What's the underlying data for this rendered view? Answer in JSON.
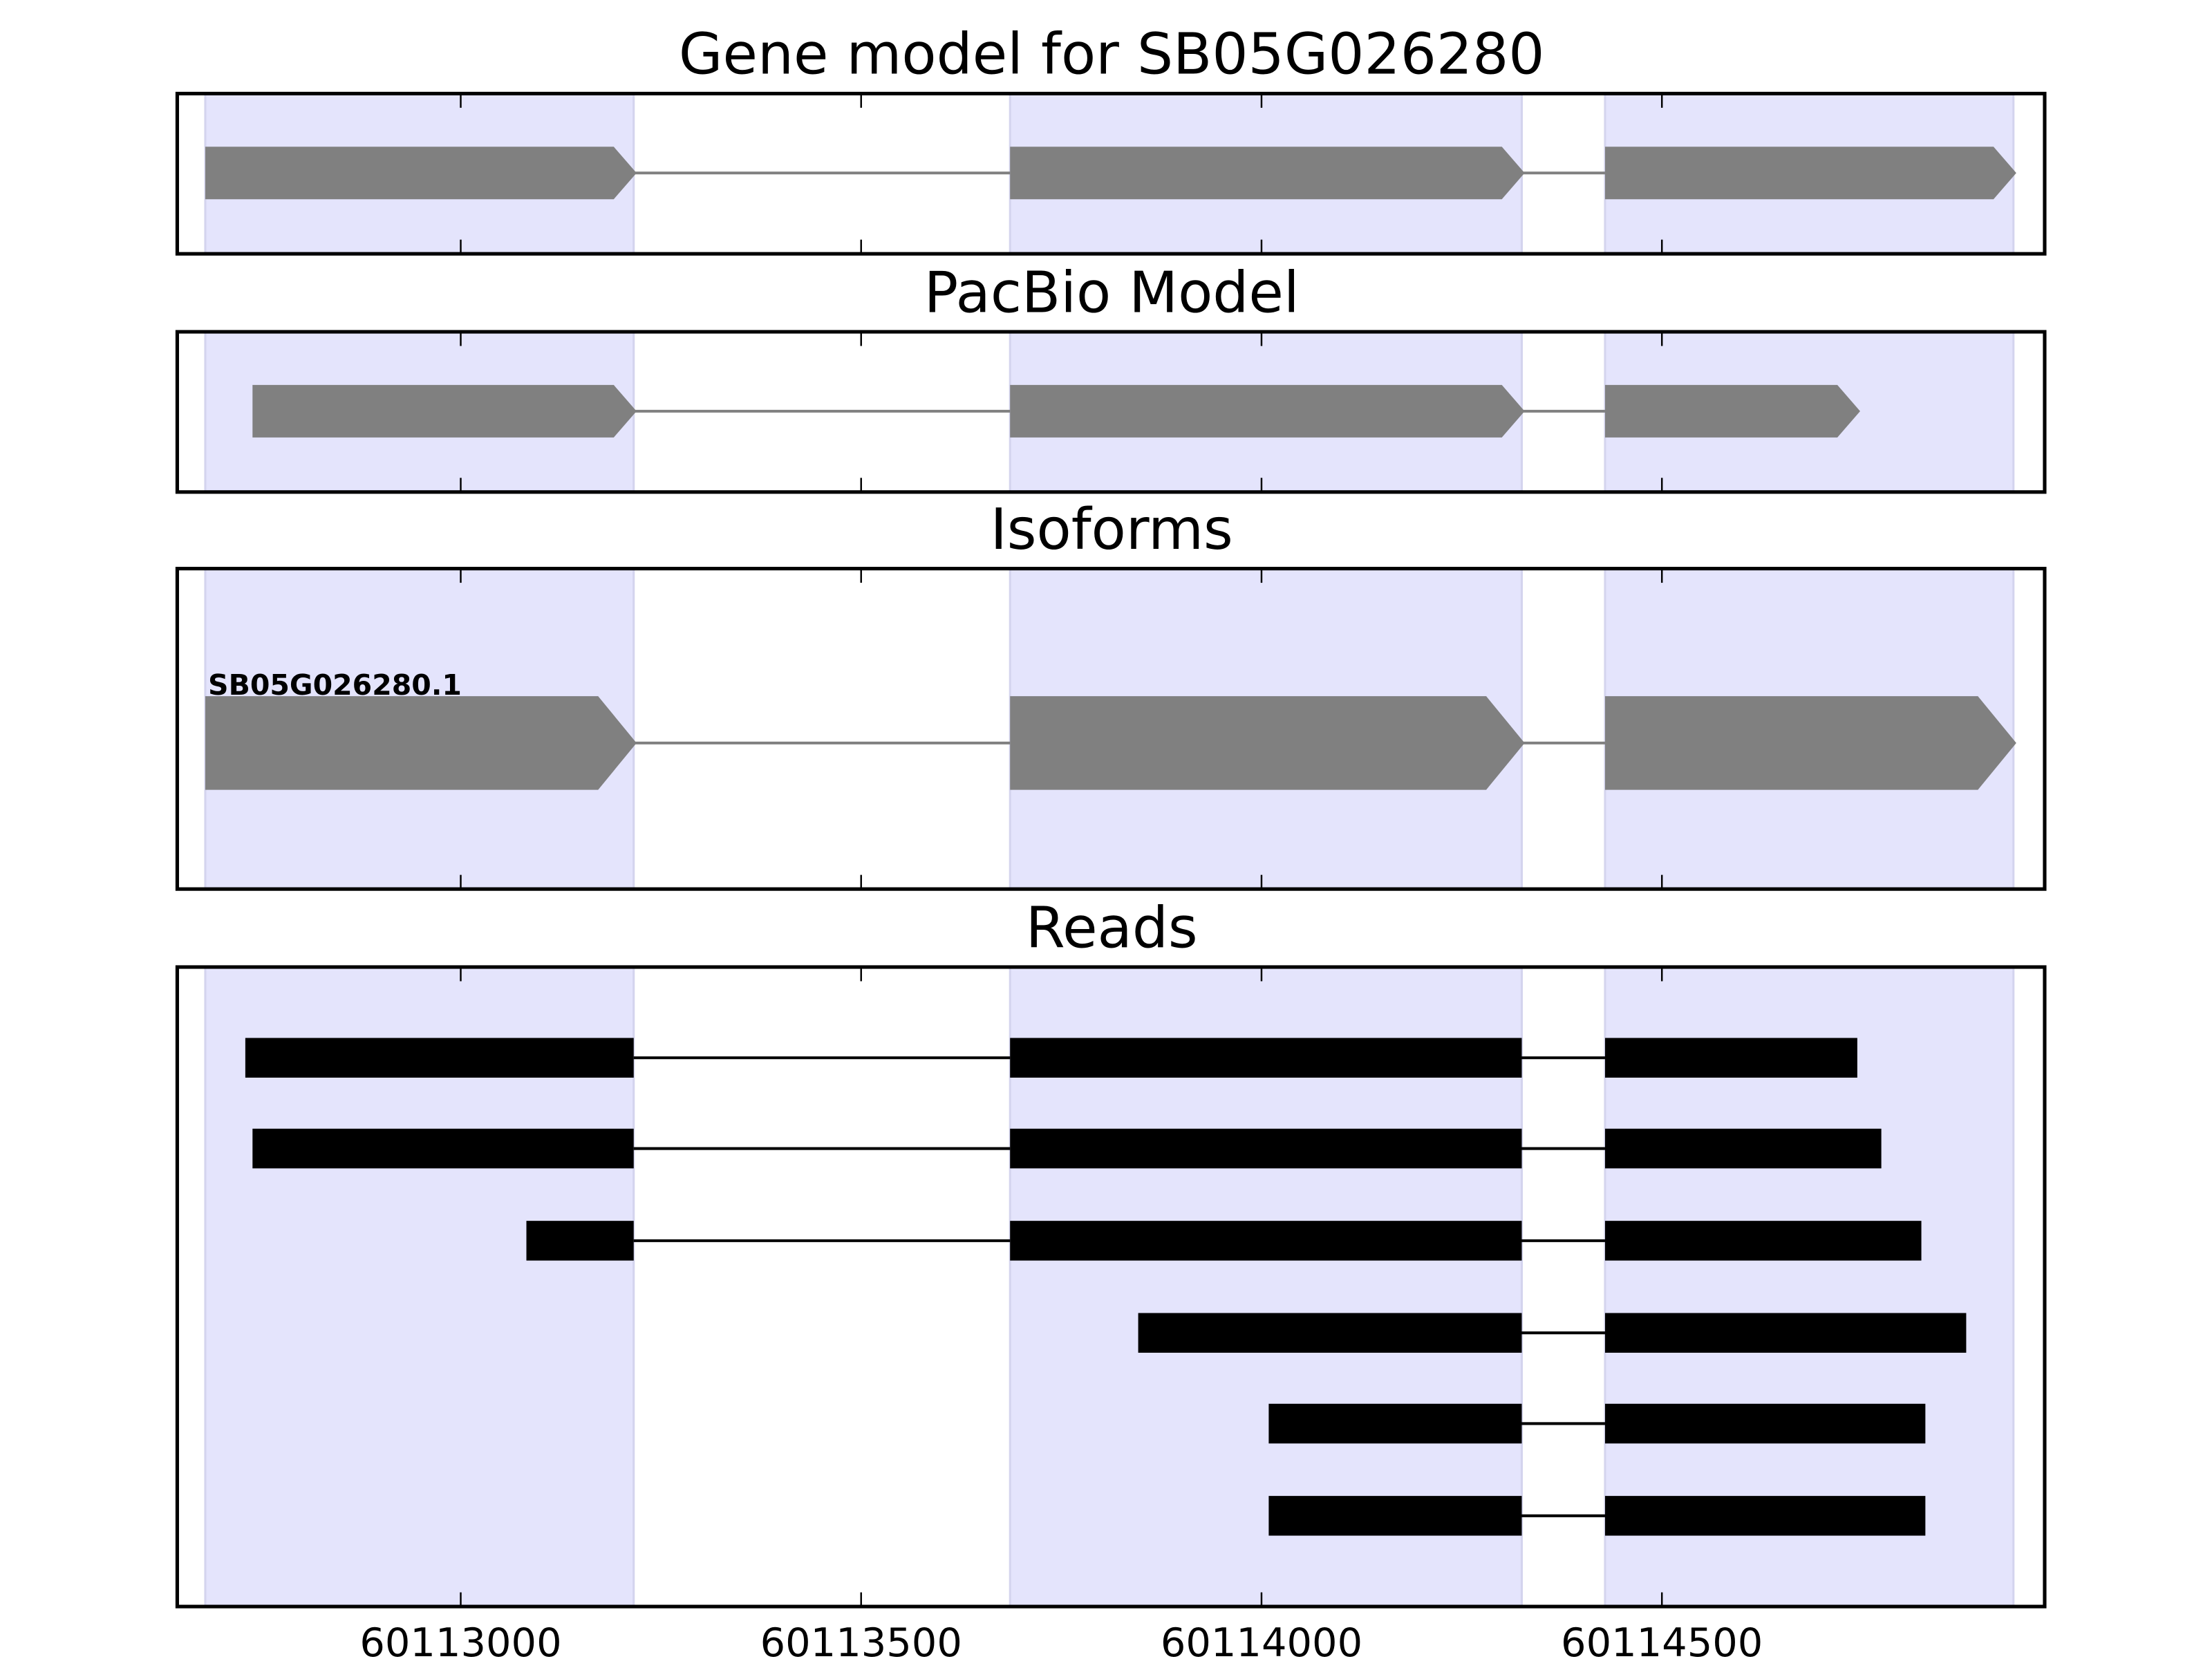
{
  "chart_data": {
    "type": "gene-track",
    "xlim": [
      60112646,
      60114978
    ],
    "x_ticks": [
      60113000,
      60113500,
      60114000,
      60114500
    ],
    "x_tick_labels": [
      "60113000",
      "60113500",
      "60114000",
      "60114500"
    ],
    "shaded_regions": [
      [
        60112681,
        60113216
      ],
      [
        60113686,
        60114325
      ],
      [
        60114429,
        60114939
      ]
    ],
    "colors": {
      "shade": "#e4e4fc",
      "model": "#808080",
      "reads": "#000000"
    },
    "panels": [
      {
        "title": "Gene model for SB05G026280",
        "kind": "model",
        "tracks": [
          {
            "label": "",
            "exons": [
              [
                60112681,
                60113216
              ],
              [
                60113686,
                60114325
              ],
              [
                60114429,
                60114939
              ]
            ]
          }
        ]
      },
      {
        "title": "PacBio Model",
        "kind": "model",
        "tracks": [
          {
            "label": "",
            "exons": [
              [
                60112740,
                60113216
              ],
              [
                60113686,
                60114325
              ],
              [
                60114429,
                60114744
              ]
            ]
          }
        ]
      },
      {
        "title": "Isoforms",
        "kind": "isoform",
        "tracks": [
          {
            "label": "SB05G026280.1",
            "exons": [
              [
                60112681,
                60113216
              ],
              [
                60113686,
                60114325
              ],
              [
                60114429,
                60114939
              ]
            ]
          }
        ]
      },
      {
        "title": "Reads",
        "kind": "reads",
        "tracks": [
          {
            "label": "",
            "exons": [
              [
                60112731,
                60113216
              ],
              [
                60113686,
                60114325
              ],
              [
                60114429,
                60114744
              ]
            ]
          },
          {
            "label": "",
            "exons": [
              [
                60112740,
                60113216
              ],
              [
                60113686,
                60114325
              ],
              [
                60114429,
                60114774
              ]
            ]
          },
          {
            "label": "",
            "exons": [
              [
                60113082,
                60113216
              ],
              [
                60113686,
                60114325
              ],
              [
                60114429,
                60114824
              ]
            ]
          },
          {
            "label": "",
            "exons": [
              [
                60113846,
                60114325
              ],
              [
                60114429,
                60114880
              ]
            ]
          },
          {
            "label": "",
            "exons": [
              [
                60114009,
                60114325
              ],
              [
                60114429,
                60114829
              ]
            ]
          },
          {
            "label": "",
            "exons": [
              [
                60114009,
                60114325
              ],
              [
                60114429,
                60114829
              ]
            ]
          }
        ]
      }
    ]
  }
}
